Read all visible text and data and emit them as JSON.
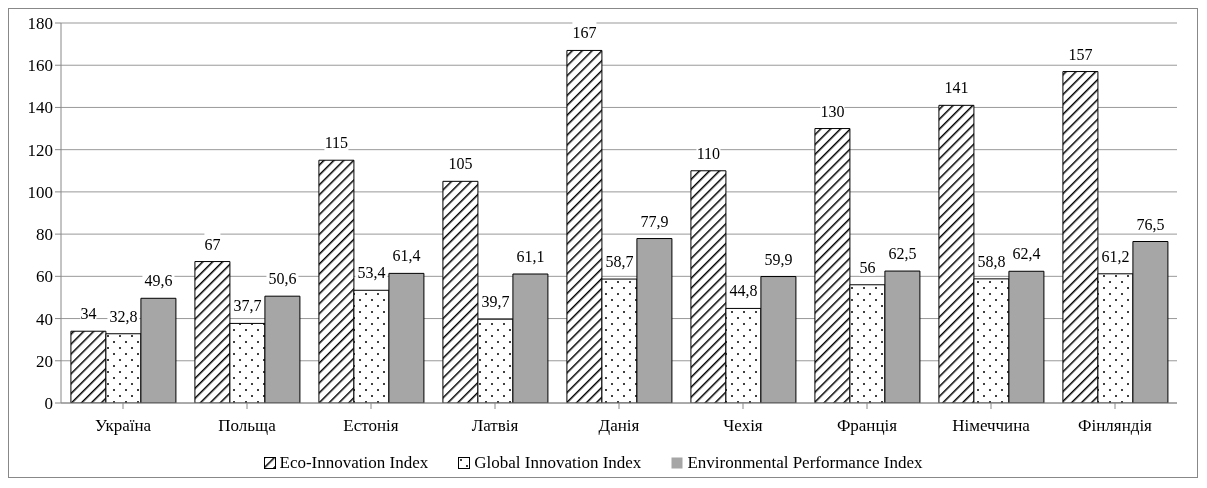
{
  "chart_data": {
    "type": "bar",
    "categories": [
      "Україна",
      "Польща",
      "Естонія",
      "Латвія",
      "Данія",
      "Чехія",
      "Франція",
      "Німеччина",
      "Фінляндія"
    ],
    "series": [
      {
        "name": "Eco-Innovation Index",
        "color": "#000000",
        "values": [
          34,
          67,
          115,
          105,
          167,
          110,
          130,
          141,
          157
        ],
        "value_labels": [
          "34",
          "67",
          "115",
          "105",
          "167",
          "110",
          "130",
          "141",
          "157"
        ]
      },
      {
        "name": "Global Innovation Index",
        "color": "#000000",
        "values": [
          32.8,
          37.7,
          53.4,
          39.7,
          58.7,
          44.8,
          56,
          58.8,
          61.2
        ],
        "value_labels": [
          "32,8",
          "37,7",
          "53,4",
          "39,7",
          "58,7",
          "44,8",
          "56",
          "58,8",
          "61,2"
        ]
      },
      {
        "name": "Environmental Performance Index",
        "color": "#a6a6a6",
        "values": [
          49.6,
          50.6,
          61.4,
          61.1,
          77.9,
          59.9,
          62.5,
          62.4,
          76.5
        ],
        "value_labels": [
          "49,6",
          "50,6",
          "61,4",
          "61,1",
          "77,9",
          "59,9",
          "62,5",
          "62,4",
          "76,5"
        ]
      }
    ],
    "ylim": [
      0,
      180
    ],
    "yticks": [
      0,
      20,
      40,
      60,
      80,
      100,
      120,
      140,
      160,
      180
    ],
    "grid": "y",
    "legend": "bottom"
  }
}
